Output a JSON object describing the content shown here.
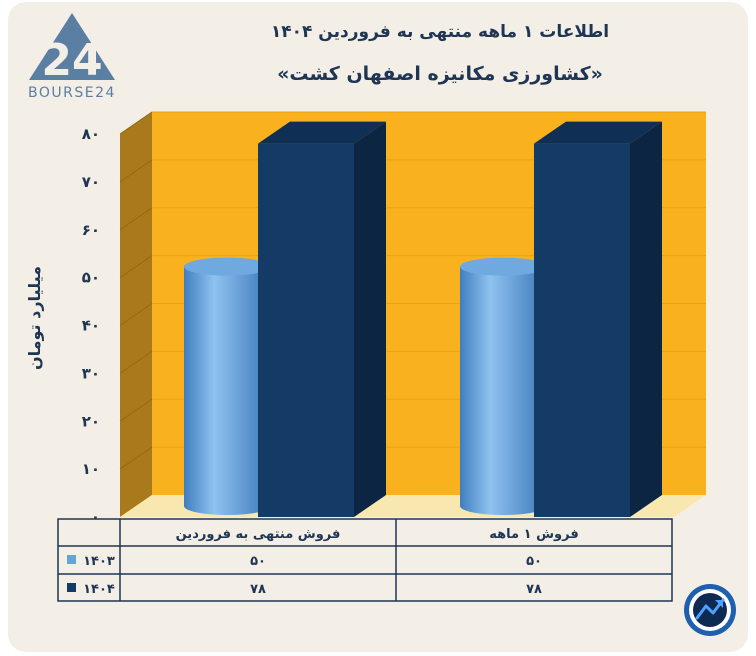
{
  "brand": {
    "logo_number": "24",
    "logo_text": "BOURSE24"
  },
  "title_line1": "اطلاعات ۱ ماهه منتهی به فروردین ۱۴۰۴",
  "title_line2": "«کشاورزی مکانیزه اصفهان کشت»",
  "colors": {
    "background": "#f3eee6",
    "wall": "#f9b21d",
    "wall_side": "#a97a1c",
    "floor": "#f8e8b0",
    "series_1403": "#63a3df",
    "series_1404": "#143a66",
    "text": "#1e3553"
  },
  "chart_data": {
    "type": "bar",
    "categories": [
      "فروش ۱ ماهه",
      "فروش منتهی به فروردین"
    ],
    "series": [
      {
        "name": "۱۴۰۳",
        "values": [
          50,
          50
        ],
        "shape": "cylinder"
      },
      {
        "name": "۱۴۰۴",
        "values": [
          78,
          78
        ],
        "shape": "box"
      }
    ],
    "ylabel": "میلیارد تومان",
    "ylim": [
      0,
      80
    ],
    "yticks": [
      0,
      10,
      20,
      30,
      40,
      50,
      60,
      70,
      80
    ],
    "ytick_labels": [
      "۰",
      "۱۰",
      "۲۰",
      "۳۰",
      "۴۰",
      "۵۰",
      "۶۰",
      "۷۰",
      "۸۰"
    ],
    "value_labels": {
      "۱۴۰۳": [
        "۵۰",
        "۵۰"
      ],
      "۱۴۰۴": [
        "۷۸",
        "۷۸"
      ]
    },
    "grid": true,
    "data_table": true
  }
}
